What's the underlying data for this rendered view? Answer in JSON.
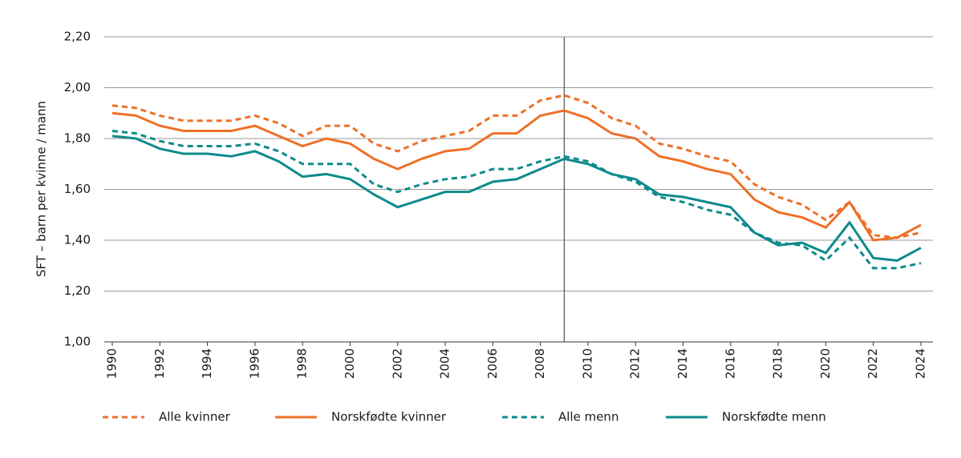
{
  "chart_data": {
    "type": "line",
    "y_label": "SFT – barn per kvinne / mann",
    "x": [
      1990,
      1991,
      1992,
      1993,
      1994,
      1995,
      1996,
      1997,
      1998,
      1999,
      2000,
      2001,
      2002,
      2003,
      2004,
      2005,
      2006,
      2007,
      2008,
      2009,
      2010,
      2011,
      2012,
      2013,
      2014,
      2015,
      2016,
      2017,
      2018,
      2019,
      2020,
      2021,
      2022,
      2023,
      2024
    ],
    "xlim": [
      1990,
      2024
    ],
    "xticks": [
      1990,
      1992,
      1994,
      1996,
      1998,
      2000,
      2002,
      2004,
      2006,
      2008,
      2010,
      2012,
      2014,
      2016,
      2018,
      2020,
      2022,
      2024
    ],
    "ylim": [
      1.0,
      2.2
    ],
    "yticks": [
      {
        "value": 1.0,
        "label": "1,00"
      },
      {
        "value": 1.2,
        "label": "1,20"
      },
      {
        "value": 1.4,
        "label": "1,40"
      },
      {
        "value": 1.6,
        "label": "1,60"
      },
      {
        "value": 1.8,
        "label": "1,80"
      },
      {
        "value": 2.0,
        "label": "2,00"
      },
      {
        "value": 2.2,
        "label": "2,20"
      }
    ],
    "grid": true,
    "reference_line_x": 2009,
    "legend": "bottom",
    "series": [
      {
        "name": "Alle kvinner",
        "color": "#ee7029",
        "dashed": true,
        "values": [
          1.93,
          1.92,
          1.89,
          1.87,
          1.87,
          1.87,
          1.89,
          1.86,
          1.81,
          1.85,
          1.85,
          1.78,
          1.75,
          1.79,
          1.81,
          1.83,
          1.89,
          1.89,
          1.95,
          1.97,
          1.94,
          1.88,
          1.85,
          1.78,
          1.76,
          1.73,
          1.71,
          1.62,
          1.57,
          1.54,
          1.48,
          1.55,
          1.42,
          1.41,
          1.43
        ]
      },
      {
        "name": "Norskfødte kvinner",
        "color": "#ee7029",
        "dashed": false,
        "values": [
          1.9,
          1.89,
          1.85,
          1.83,
          1.83,
          1.83,
          1.85,
          1.81,
          1.77,
          1.8,
          1.78,
          1.72,
          1.68,
          1.72,
          1.75,
          1.76,
          1.82,
          1.82,
          1.89,
          1.91,
          1.88,
          1.82,
          1.8,
          1.73,
          1.71,
          1.68,
          1.66,
          1.56,
          1.51,
          1.49,
          1.45,
          1.55,
          1.4,
          1.41,
          1.46
        ]
      },
      {
        "name": "Alle menn",
        "color": "#0e8a8c",
        "dashed": true,
        "values": [
          1.83,
          1.82,
          1.79,
          1.77,
          1.77,
          1.77,
          1.78,
          1.75,
          1.7,
          1.7,
          1.7,
          1.62,
          1.59,
          1.62,
          1.64,
          1.65,
          1.68,
          1.68,
          1.71,
          1.73,
          1.71,
          1.66,
          1.63,
          1.57,
          1.55,
          1.52,
          1.5,
          1.43,
          1.39,
          1.38,
          1.32,
          1.41,
          1.29,
          1.29,
          1.31
        ]
      },
      {
        "name": "Norskfødte menn",
        "color": "#0e8a8c",
        "dashed": false,
        "values": [
          1.81,
          1.8,
          1.76,
          1.74,
          1.74,
          1.73,
          1.75,
          1.71,
          1.65,
          1.66,
          1.64,
          1.58,
          1.53,
          1.56,
          1.59,
          1.59,
          1.63,
          1.64,
          1.68,
          1.72,
          1.7,
          1.66,
          1.64,
          1.58,
          1.57,
          1.55,
          1.53,
          1.43,
          1.38,
          1.39,
          1.35,
          1.47,
          1.33,
          1.32,
          1.37
        ]
      }
    ]
  }
}
